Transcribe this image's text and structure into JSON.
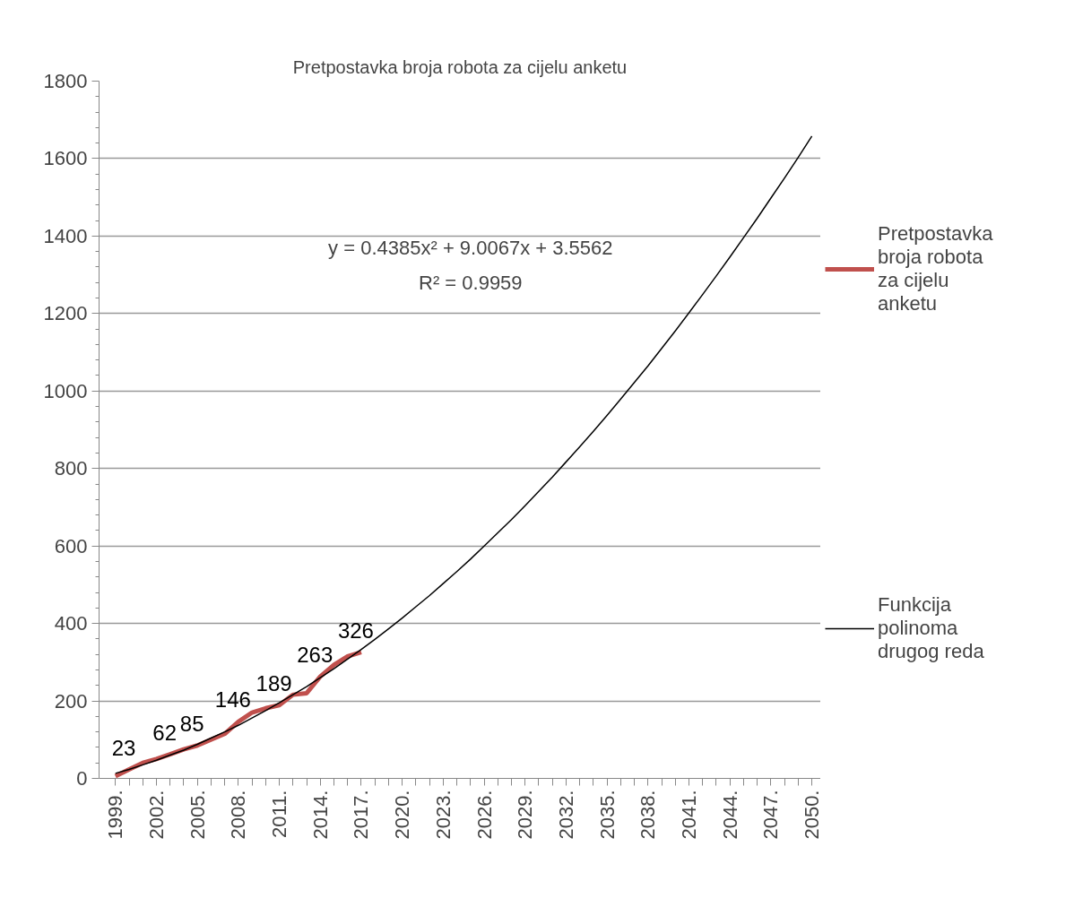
{
  "chart_data": {
    "type": "line",
    "title": "Pretpostavka broja robota za cijelu anketu",
    "categories": [
      "1999.",
      null,
      null,
      "2002.",
      null,
      null,
      "2005.",
      null,
      null,
      "2008.",
      null,
      null,
      "2011.",
      null,
      null,
      "2014.",
      null,
      null,
      "2017.",
      null,
      null,
      "2020.",
      null,
      null,
      "2023.",
      null,
      null,
      "2026.",
      null,
      null,
      "2029.",
      null,
      null,
      "2032.",
      null,
      null,
      "2035.",
      null,
      null,
      "2038.",
      null,
      null,
      "2041.",
      null,
      null,
      "2044.",
      null,
      null,
      "2047.",
      null,
      null,
      "2050."
    ],
    "series": [
      {
        "name": "Pretpostavka broja robota za cijelu anketu",
        "color": "#c0504d",
        "values": [
          6,
          23,
          40,
          50,
          62,
          75,
          85,
          100,
          115,
          146,
          170,
          181,
          189,
          216,
          220,
          263,
          293,
          315,
          326,
          null,
          null,
          null,
          null,
          null,
          null,
          null,
          null,
          null,
          null,
          null,
          null,
          null,
          null,
          null,
          null,
          null,
          null,
          null,
          null,
          null,
          null,
          null,
          null,
          null,
          null,
          null,
          null,
          null,
          null,
          null,
          null,
          null
        ],
        "value_labels": [
          null,
          "23",
          null,
          null,
          "62",
          null,
          "85",
          null,
          null,
          "146",
          null,
          null,
          "189",
          null,
          null,
          "263",
          null,
          null,
          "326",
          null,
          null,
          null,
          null,
          null,
          null,
          null,
          null,
          null,
          null,
          null,
          null,
          null,
          null,
          null,
          null,
          null,
          null,
          null,
          null,
          null,
          null,
          null,
          null,
          null,
          null,
          null,
          null,
          null,
          null,
          null,
          null,
          null
        ]
      },
      {
        "name": "Funkcija polinoma drugog reda",
        "color": "#000000",
        "values": [
          13,
          23,
          35,
          47,
          60,
          73,
          88,
          104,
          120,
          137,
          156,
          175,
          195,
          216,
          237,
          260,
          283,
          308,
          333,
          359,
          386,
          414,
          443,
          472,
          503,
          534,
          566,
          600,
          634,
          668,
          704,
          741,
          778,
          817,
          856,
          896,
          937,
          979,
          1022,
          1065,
          1110,
          1155,
          1202,
          1249,
          1297,
          1346,
          1396,
          1446,
          1498,
          1550,
          1603,
          1658
        ]
      }
    ],
    "annotations": [
      "y = 0.4385x² + 9.0067x + 3.5562",
      "R² = 0.9959"
    ],
    "ylim": [
      0,
      1800
    ],
    "yticks": [
      0,
      200,
      400,
      600,
      800,
      1000,
      1200,
      1400,
      1600,
      1800
    ],
    "grid": "y",
    "legend": "right",
    "marker": "none",
    "line_style": "solid"
  }
}
